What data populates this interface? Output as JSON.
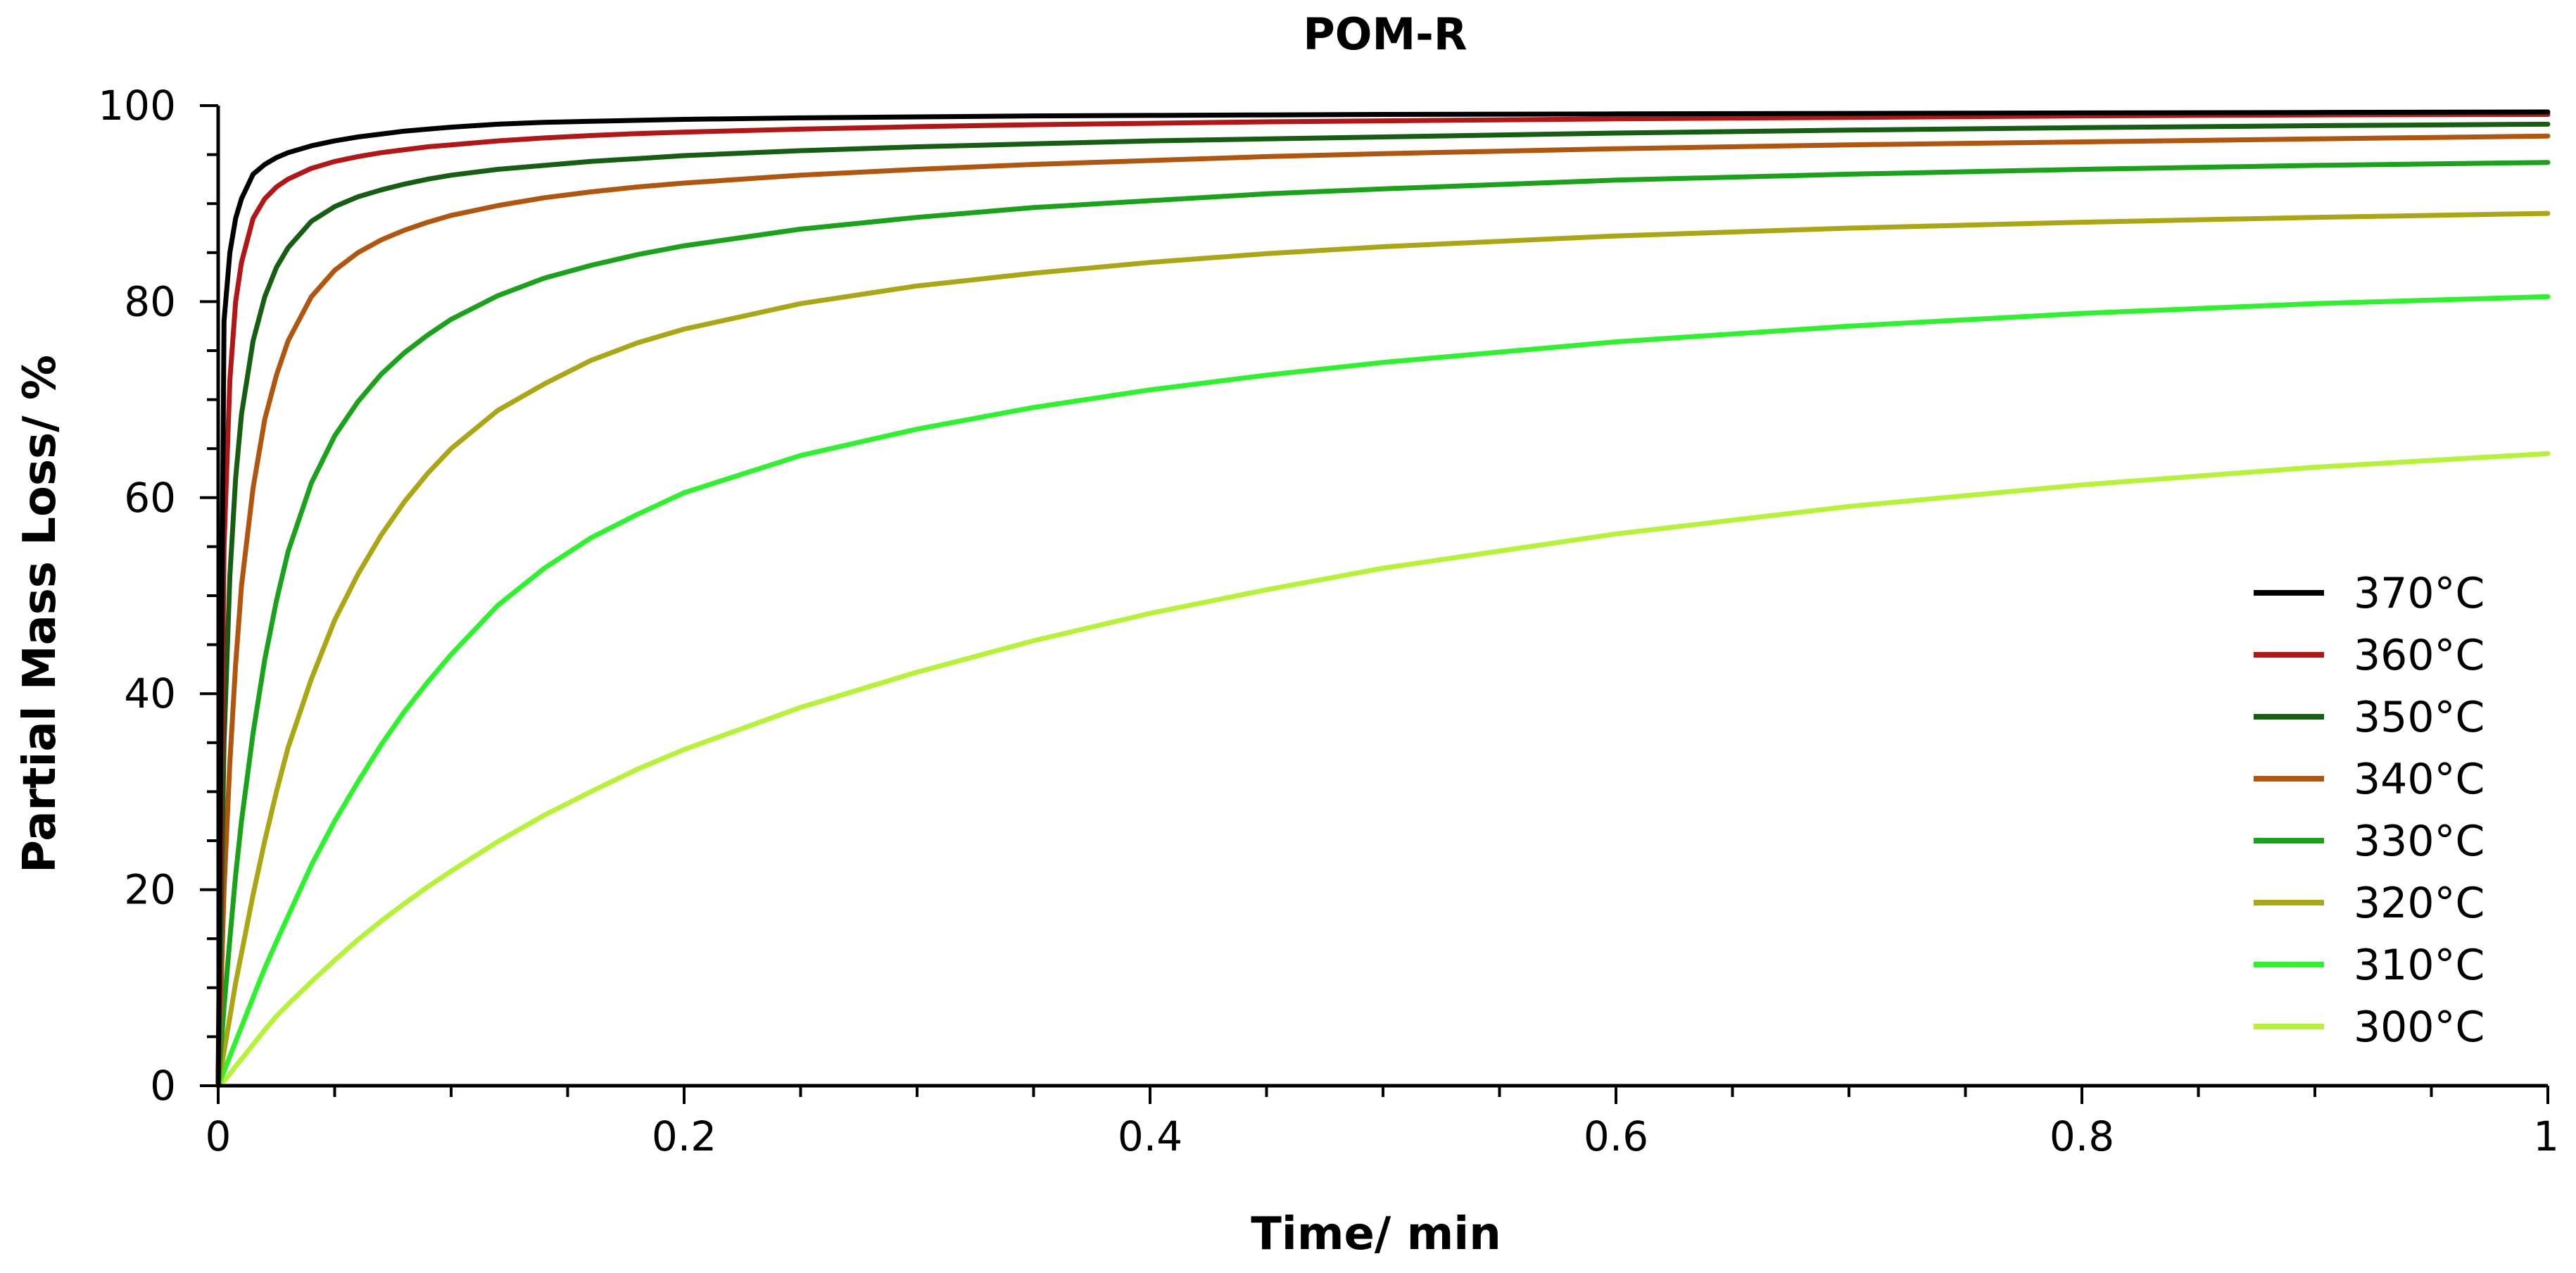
{
  "chart_data": {
    "type": "line",
    "title": "POM-R",
    "xlabel": "Time/ min",
    "ylabel": "Partial Mass Loss/ %",
    "xlim": [
      0,
      1
    ],
    "ylim": [
      0,
      100
    ],
    "x_ticks": [
      0,
      0.2,
      0.4,
      0.6,
      0.8,
      1
    ],
    "x_tick_labels": [
      "0",
      "0.2",
      "0.4",
      "0.6",
      "0.8",
      "1"
    ],
    "y_ticks": [
      0,
      20,
      40,
      60,
      80,
      100
    ],
    "y_tick_labels": [
      "0",
      "20",
      "40",
      "60",
      "80",
      "100"
    ],
    "x_minor_step": 0.05,
    "y_minor_step": 5,
    "grid": false,
    "legend_position": "right",
    "x": [
      0,
      0.0025,
      0.005,
      0.0075,
      0.01,
      0.015,
      0.02,
      0.025,
      0.03,
      0.04,
      0.05,
      0.06,
      0.07,
      0.08,
      0.09,
      0.1,
      0.12,
      0.14,
      0.16,
      0.18,
      0.2,
      0.25,
      0.3,
      0.35,
      0.4,
      0.45,
      0.5,
      0.6,
      0.7,
      0.8,
      0.9,
      1.0
    ],
    "series": [
      {
        "name": "370°C",
        "color": "#000000",
        "values": [
          0,
          78,
          85,
          88.5,
          90.5,
          93,
          94,
          94.7,
          95.2,
          95.9,
          96.4,
          96.8,
          97.1,
          97.4,
          97.6,
          97.8,
          98.1,
          98.3,
          98.4,
          98.5,
          98.6,
          98.75,
          98.85,
          98.95,
          99.0,
          99.05,
          99.1,
          99.15,
          99.2,
          99.25,
          99.3,
          99.35
        ]
      },
      {
        "name": "360°C",
        "color": "#b21616",
        "values": [
          0,
          55,
          72,
          80,
          84,
          88.5,
          90.5,
          91.7,
          92.5,
          93.6,
          94.3,
          94.8,
          95.2,
          95.5,
          95.8,
          96.0,
          96.4,
          96.7,
          96.95,
          97.15,
          97.3,
          97.6,
          97.85,
          98.05,
          98.2,
          98.35,
          98.45,
          98.65,
          98.8,
          98.95,
          99.05,
          99.1
        ]
      },
      {
        "name": "350°C",
        "color": "#155e12",
        "values": [
          0,
          35,
          52,
          62,
          68.5,
          76,
          80.5,
          83.5,
          85.5,
          88.2,
          89.7,
          90.7,
          91.4,
          92.0,
          92.5,
          92.9,
          93.5,
          93.9,
          94.3,
          94.6,
          94.9,
          95.4,
          95.8,
          96.1,
          96.4,
          96.6,
          96.8,
          97.2,
          97.5,
          97.75,
          97.95,
          98.1
        ]
      },
      {
        "name": "340°C",
        "color": "#b0560e",
        "values": [
          0,
          20,
          33,
          43,
          51,
          61,
          68,
          72.5,
          76,
          80.5,
          83.2,
          85.0,
          86.3,
          87.3,
          88.1,
          88.8,
          89.8,
          90.6,
          91.2,
          91.7,
          92.1,
          92.9,
          93.5,
          94.0,
          94.4,
          94.8,
          95.1,
          95.6,
          96.0,
          96.3,
          96.6,
          96.9
        ]
      },
      {
        "name": "330°C",
        "color": "#1aa31a",
        "values": [
          0,
          8,
          15,
          21.5,
          27,
          36,
          43.5,
          49.5,
          54.5,
          61.5,
          66.3,
          69.8,
          72.6,
          74.8,
          76.6,
          78.2,
          80.6,
          82.4,
          83.7,
          84.8,
          85.7,
          87.4,
          88.6,
          89.6,
          90.3,
          91.0,
          91.5,
          92.4,
          93.0,
          93.5,
          93.9,
          94.2
        ]
      },
      {
        "name": "320°C",
        "color": "#aba614",
        "values": [
          0,
          3.5,
          7,
          10.5,
          13.5,
          19.5,
          25,
          30,
          34.5,
          41.5,
          47.5,
          52.2,
          56.2,
          59.6,
          62.5,
          65.0,
          68.9,
          71.6,
          74.0,
          75.8,
          77.2,
          79.8,
          81.6,
          82.9,
          84.0,
          84.9,
          85.6,
          86.7,
          87.5,
          88.1,
          88.6,
          89.0
        ]
      },
      {
        "name": "310°C",
        "color": "#2ef22e",
        "values": [
          0,
          1.5,
          3,
          4.5,
          6,
          9,
          12,
          14.7,
          17.3,
          22.5,
          27,
          31,
          34.8,
          38.2,
          41.2,
          44.0,
          49.0,
          52.8,
          55.9,
          58.3,
          60.5,
          64.3,
          67.0,
          69.2,
          71.0,
          72.5,
          73.8,
          75.9,
          77.5,
          78.8,
          79.8,
          80.5
        ]
      },
      {
        "name": "300°C",
        "color": "#b6f237",
        "values": [
          0,
          0.5,
          1.2,
          2,
          2.7,
          4.2,
          5.7,
          7.1,
          8.3,
          10.6,
          12.8,
          14.9,
          16.8,
          18.6,
          20.3,
          21.9,
          24.9,
          27.6,
          30.0,
          32.3,
          34.3,
          38.6,
          42.2,
          45.4,
          48.2,
          50.6,
          52.8,
          56.3,
          59.1,
          61.3,
          63.1,
          64.5
        ]
      }
    ]
  }
}
